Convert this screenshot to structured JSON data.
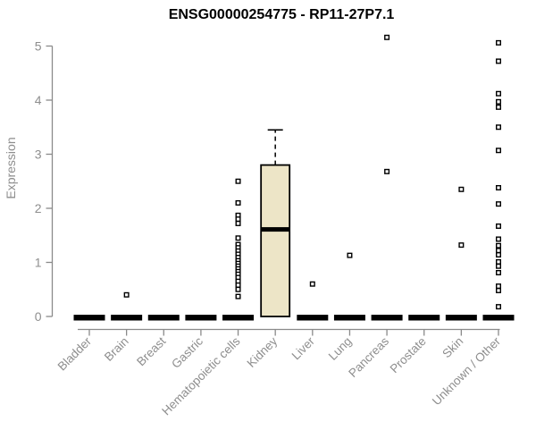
{
  "chart_data": {
    "type": "boxplot",
    "title": "ENSG00000254775 - RP11-27P7.1",
    "ylabel": "Expression",
    "xlabel": "",
    "ylim": [
      0,
      5
    ],
    "yticks": [
      0,
      1,
      2,
      3,
      4,
      5
    ],
    "grid": false,
    "legend": "none",
    "categories": [
      "Bladder",
      "Brain",
      "Breast",
      "Gastric",
      "Hematopoietic cells",
      "Kidney",
      "Liver",
      "Lung",
      "Pancreas",
      "Prostate",
      "Skin",
      "Unknown / Other"
    ],
    "boxes": [
      {
        "category": "Bladder",
        "q1": 0,
        "median": 0,
        "q3": 0,
        "whisker_low": 0,
        "whisker_high": 0,
        "outliers": []
      },
      {
        "category": "Brain",
        "q1": 0,
        "median": 0,
        "q3": 0,
        "whisker_low": 0,
        "whisker_high": 0,
        "outliers": [
          0.4
        ]
      },
      {
        "category": "Breast",
        "q1": 0,
        "median": 0,
        "q3": 0,
        "whisker_low": 0,
        "whisker_high": 0,
        "outliers": []
      },
      {
        "category": "Gastric",
        "q1": 0,
        "median": 0,
        "q3": 0,
        "whisker_low": 0,
        "whisker_high": 0,
        "outliers": []
      },
      {
        "category": "Hematopoietic cells",
        "q1": 0,
        "median": 0,
        "q3": 0,
        "whisker_low": 0,
        "whisker_high": 0,
        "outliers": [
          2.5,
          2.1,
          1.87,
          1.8,
          1.72,
          1.45,
          1.33,
          1.27,
          1.21,
          1.15,
          1.09,
          1.03,
          0.98,
          0.93,
          0.88,
          0.83,
          0.78,
          0.72,
          0.65,
          0.58,
          0.5,
          0.37
        ]
      },
      {
        "category": "Kidney",
        "q1": 0,
        "median": 1.61,
        "q3": 2.8,
        "whisker_low": 0,
        "whisker_high": 3.45,
        "outliers": []
      },
      {
        "category": "Liver",
        "q1": 0,
        "median": 0,
        "q3": 0,
        "whisker_low": 0,
        "whisker_high": 0,
        "outliers": [
          0.6
        ]
      },
      {
        "category": "Lung",
        "q1": 0,
        "median": 0,
        "q3": 0,
        "whisker_low": 0,
        "whisker_high": 0,
        "outliers": [
          1.13
        ]
      },
      {
        "category": "Pancreas",
        "q1": 0,
        "median": 0,
        "q3": 0,
        "whisker_low": 0,
        "whisker_high": 0,
        "outliers": [
          5.16,
          2.68
        ]
      },
      {
        "category": "Prostate",
        "q1": 0,
        "median": 0,
        "q3": 0,
        "whisker_low": 0,
        "whisker_high": 0,
        "outliers": []
      },
      {
        "category": "Skin",
        "q1": 0,
        "median": 0,
        "q3": 0,
        "whisker_low": 0,
        "whisker_high": 0,
        "outliers": [
          2.35,
          1.32
        ]
      },
      {
        "category": "Unknown / Other",
        "q1": 0,
        "median": 0,
        "q3": 0,
        "whisker_low": 0,
        "whisker_high": 0,
        "outliers": [
          5.06,
          4.72,
          4.12,
          3.97,
          3.87,
          3.5,
          3.07,
          2.38,
          2.08,
          1.67,
          1.43,
          1.31,
          1.22,
          1.14,
          1.01,
          0.93,
          0.81,
          0.56,
          0.48,
          0.18
        ]
      }
    ],
    "colors": {
      "background": "#ffffff",
      "title": "#000000",
      "axis": "#8a8a8a",
      "axis_text": "#8e8e8e",
      "box_fill": "#ede5c7",
      "box_border": "#000000",
      "median": "#000000",
      "outlier_stroke": "#000000",
      "outlier_fill": "#ffffff"
    }
  }
}
